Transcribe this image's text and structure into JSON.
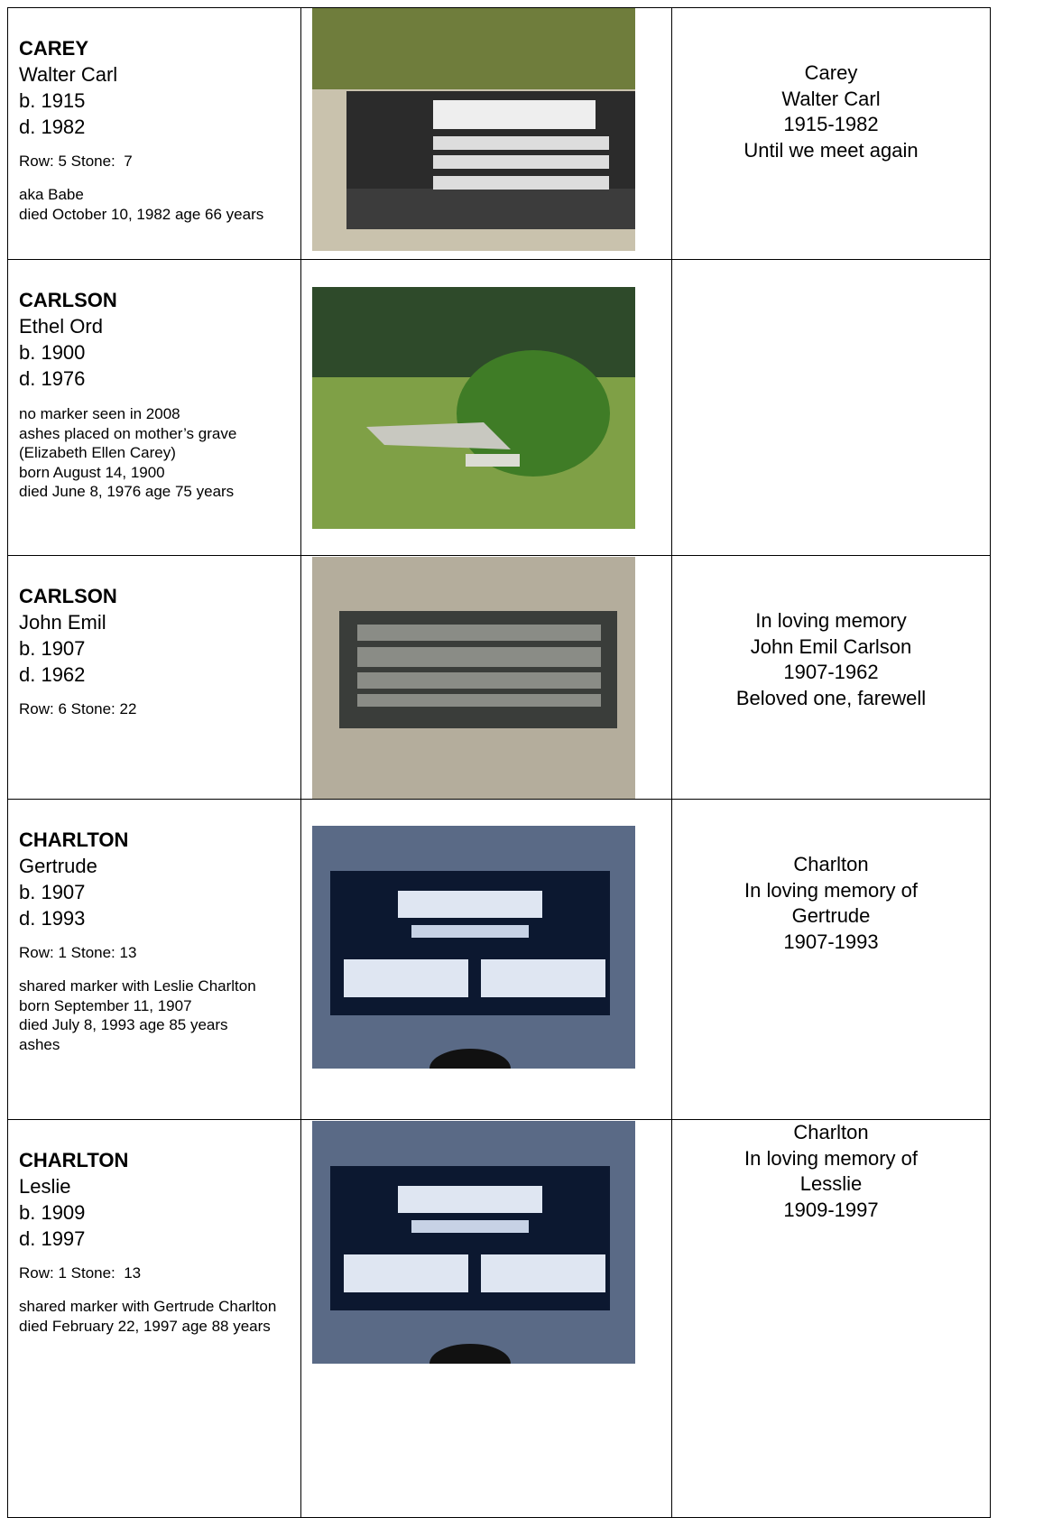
{
  "rows": [
    {
      "surname": "CAREY",
      "given": "Walter Carl",
      "born": "b. 1915",
      "died": "d. 1982",
      "location": "Row: 5 Stone:  7",
      "notes": [
        "aka Babe",
        "died October 10, 1982 age 66 years"
      ],
      "inscription": [
        "Carey",
        "Walter Carl",
        "1915-1982",
        "Until we meet again"
      ]
    },
    {
      "surname": "CARLSON",
      "given": "Ethel Ord",
      "born": "b. 1900",
      "died": "d. 1976",
      "notes": [
        "no marker seen in 2008",
        "ashes placed on mother’s grave (Elizabeth Ellen Carey)",
        "born August 14, 1900",
        "died June 8, 1976 age 75 years"
      ],
      "inscription": []
    },
    {
      "surname": "CARLSON",
      "given": "John Emil",
      "born": "b. 1907",
      "died": "d. 1962",
      "location": "Row: 6 Stone: 22",
      "notes": [],
      "inscription": [
        "In loving memory",
        "John Emil Carlson",
        "1907-1962",
        "Beloved one, farewell"
      ]
    },
    {
      "surname": "CHARLTON",
      "given": "Gertrude",
      "born": "b. 1907",
      "died": "d. 1993",
      "location": "Row: 1 Stone: 13",
      "notes": [
        "shared marker with Leslie Charlton",
        "born September 11, 1907",
        "died July 8, 1993 age 85 years",
        "ashes"
      ],
      "inscription": [
        "Charlton",
        "In loving memory of",
        "Gertrude",
        "1907-1993"
      ]
    },
    {
      "surname": "CHARLTON",
      "given": "Leslie",
      "born": "b. 1909",
      "died": "d. 1997",
      "location": "Row: 1 Stone:  13",
      "notes": [
        "shared marker with Gertrude Charlton",
        "died February 22, 1997 age 88 years"
      ],
      "inscription": [
        "Charlton",
        "In loving memory of",
        "Lesslie",
        "1909-1997"
      ]
    }
  ]
}
